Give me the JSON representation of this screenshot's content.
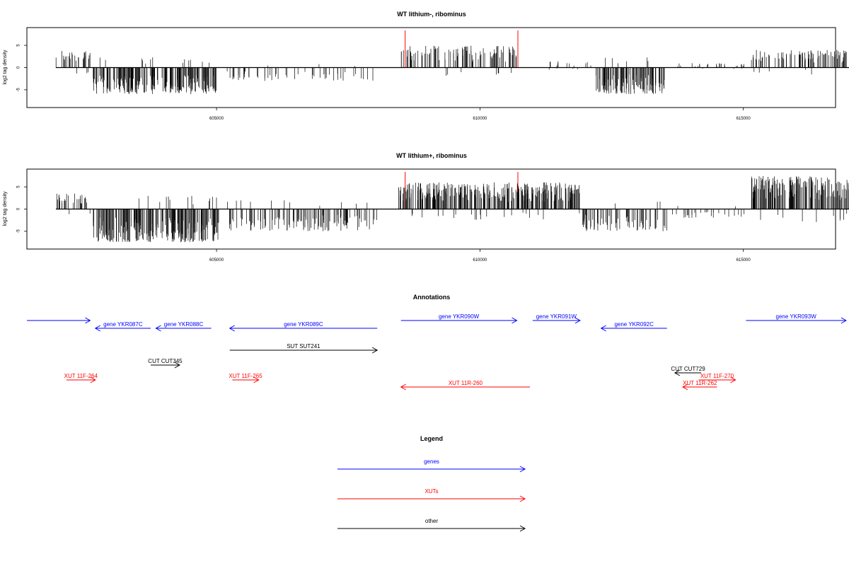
{
  "chart_data": [
    {
      "type": "bar",
      "title": "WT lithium-, ribominus",
      "ylabel": "log2 tag density",
      "xlabel": "",
      "xlim": [
        601400,
        616750
      ],
      "ylim": [
        -9,
        9
      ],
      "xticks": [
        605000,
        610000,
        615000
      ],
      "xtick_labels": [
        "605000",
        "610000",
        "615000"
      ],
      "yticks": [
        -5,
        0,
        5
      ],
      "ytick_labels": [
        "-5",
        "0",
        "5"
      ],
      "red_markers_x": [
        608580,
        610720
      ],
      "series": [
        {
          "segments": [
            {
              "x0": 601950,
              "x1": 602600,
              "amp": 4
            },
            {
              "x0": 602650,
              "x1": 605000,
              "amp": -6
            },
            {
              "x0": 605200,
              "x1": 608050,
              "amp": -3
            },
            {
              "x0": 608500,
              "x1": 610750,
              "amp": 5
            },
            {
              "x0": 611300,
              "x1": 612150,
              "amp": 1.5
            },
            {
              "x0": 612200,
              "x1": 613500,
              "amp": -6
            },
            {
              "x0": 613600,
              "x1": 615050,
              "amp": 1
            },
            {
              "x0": 615150,
              "x1": 617150,
              "amp": 4
            }
          ]
        }
      ]
    },
    {
      "type": "bar",
      "title": "WT lithium+, ribominus",
      "ylabel": "log2 tag density",
      "xlabel": "",
      "xlim": [
        601400,
        616750
      ],
      "ylim": [
        -9,
        9
      ],
      "xticks": [
        605000,
        610000,
        615000
      ],
      "xtick_labels": [
        "605000",
        "610000",
        "615000"
      ],
      "yticks": [
        -5,
        0,
        5
      ],
      "ytick_labels": [
        "-5",
        "0",
        "5"
      ],
      "red_markers_x": [
        608580,
        610720
      ],
      "series": [
        {
          "segments": [
            {
              "x0": 601950,
              "x1": 602600,
              "amp": 3.5
            },
            {
              "x0": 602650,
              "x1": 605050,
              "amp": -7.5
            },
            {
              "x0": 605200,
              "x1": 608050,
              "amp": -5
            },
            {
              "x0": 608450,
              "x1": 611900,
              "amp": 6
            },
            {
              "x0": 611950,
              "x1": 613550,
              "amp": -5
            },
            {
              "x0": 613600,
              "x1": 615100,
              "amp": -2
            },
            {
              "x0": 615150,
              "x1": 617150,
              "amp": 7.5
            }
          ]
        }
      ]
    },
    {
      "type": "annotation-track",
      "title": "Annotations",
      "xlim": [
        601400,
        616750
      ],
      "features": [
        {
          "label": "",
          "start": 601400,
          "end": 602600,
          "color": "blue",
          "dir": "+",
          "row": 0
        },
        {
          "label": "gene YKR087C",
          "start": 602700,
          "end": 603750,
          "color": "blue",
          "dir": "-",
          "row": 1
        },
        {
          "label": "gene YKR088C",
          "start": 603850,
          "end": 604900,
          "color": "blue",
          "dir": "-",
          "row": 1
        },
        {
          "label": "gene YKR089C",
          "start": 605250,
          "end": 608050,
          "color": "blue",
          "dir": "-",
          "row": 1
        },
        {
          "label": "gene YKR090W",
          "start": 608500,
          "end": 610700,
          "color": "blue",
          "dir": "+",
          "row": 0
        },
        {
          "label": "gene YKR091W",
          "start": 611000,
          "end": 611900,
          "color": "blue",
          "dir": "+",
          "row": 0
        },
        {
          "label": "gene YKR092C",
          "start": 612300,
          "end": 613550,
          "color": "blue",
          "dir": "-",
          "row": 1
        },
        {
          "label": "gene YKR093W",
          "start": 615050,
          "end": 616950,
          "color": "blue",
          "dir": "+",
          "row": 0
        },
        {
          "label": "SUT SUT241",
          "start": 605250,
          "end": 608050,
          "color": "black",
          "dir": "+",
          "row": 3
        },
        {
          "label": "CUT CUT345",
          "start": 603750,
          "end": 604300,
          "color": "black",
          "dir": "+",
          "row": 4
        },
        {
          "label": "CUT CUT729",
          "start": 613700,
          "end": 614200,
          "color": "black",
          "dir": "-",
          "row": 5
        },
        {
          "label": "XUT 11F-264",
          "start": 602150,
          "end": 602700,
          "color": "red",
          "dir": "+",
          "row": 6
        },
        {
          "label": "XUT 11F-265",
          "start": 605300,
          "end": 605800,
          "color": "red",
          "dir": "+",
          "row": 6
        },
        {
          "label": "XUT 11F-270",
          "start": 614150,
          "end": 614850,
          "color": "red",
          "dir": "+",
          "row": 7
        },
        {
          "label": "XUT 11R-260",
          "start": 608500,
          "end": 610950,
          "color": "red",
          "dir": "-",
          "row": 8
        },
        {
          "label": "XUT 11R-262",
          "start": 613850,
          "end": 614500,
          "color": "red",
          "dir": "-",
          "row": 8
        }
      ]
    },
    {
      "type": "legend",
      "title": "Legend",
      "entries": [
        {
          "label": "genes",
          "color": "blue"
        },
        {
          "label": "XUTs",
          "color": "red"
        },
        {
          "label": "other",
          "color": "black"
        }
      ]
    }
  ]
}
